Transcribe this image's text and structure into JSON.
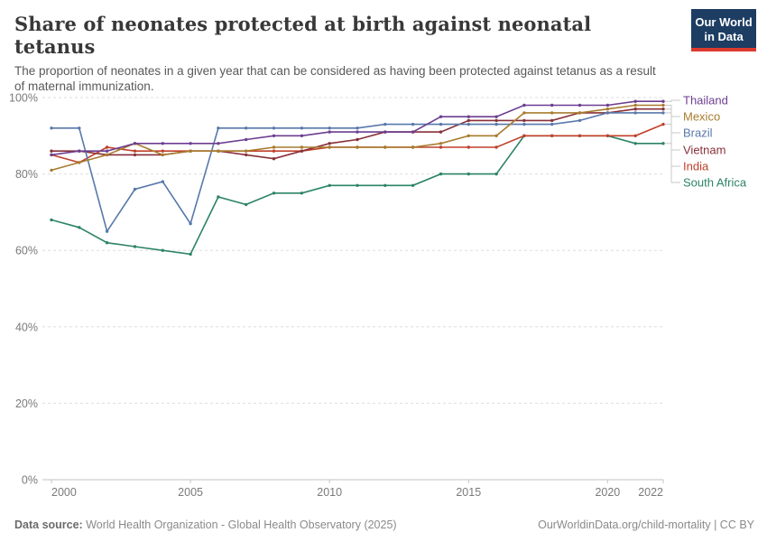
{
  "header": {
    "title": "Share of neonates protected at birth against neonatal tetanus",
    "subtitle": "The proportion of neonates in a given year that can be considered as having been protected against tetanus as a result of maternal immunization.",
    "logo": {
      "line1": "Our World",
      "line2": "in Data",
      "bg_color": "#1d3d63",
      "accent_color": "#dc3a2f"
    }
  },
  "chart_data": {
    "type": "line",
    "title": "Share of neonates protected at birth against neonatal tetanus",
    "xlabel": "",
    "ylabel": "",
    "ylim": [
      0,
      100
    ],
    "grid": "horizontal-dashed",
    "legend_position": "right",
    "x": [
      2000,
      2001,
      2002,
      2003,
      2004,
      2005,
      2006,
      2007,
      2008,
      2009,
      2010,
      2011,
      2012,
      2013,
      2014,
      2015,
      2016,
      2017,
      2018,
      2019,
      2020,
      2021,
      2022
    ],
    "x_ticks": [
      2000,
      2005,
      2010,
      2015,
      2020,
      2022
    ],
    "x_tick_labels": [
      "2000",
      "2005",
      "2010",
      "2015",
      "2020",
      "2022"
    ],
    "y_ticks": [
      0,
      20,
      40,
      60,
      80,
      100
    ],
    "y_tick_labels": [
      "0%",
      "20%",
      "40%",
      "60%",
      "80%",
      "100%"
    ],
    "series": [
      {
        "name": "Thailand",
        "color": "#6d3e91",
        "values": [
          85,
          86,
          86,
          88,
          88,
          88,
          88,
          89,
          90,
          90,
          91,
          91,
          91,
          91,
          95,
          95,
          95,
          98,
          98,
          98,
          98,
          99,
          99
        ]
      },
      {
        "name": "Mexico",
        "color": "#a87c2e",
        "values": [
          81,
          83,
          85,
          88,
          85,
          86,
          86,
          86,
          87,
          87,
          87,
          87,
          87,
          87,
          88,
          90,
          90,
          96,
          96,
          96,
          97,
          98,
          98
        ]
      },
      {
        "name": "Brazil",
        "color": "#5878ab",
        "values": [
          92,
          92,
          65,
          76,
          78,
          67,
          92,
          92,
          92,
          92,
          92,
          92,
          93,
          93,
          93,
          93,
          93,
          93,
          93,
          94,
          96,
          96,
          96
        ]
      },
      {
        "name": "Vietnam",
        "color": "#883039",
        "values": [
          86,
          86,
          85,
          85,
          85,
          86,
          86,
          85,
          84,
          86,
          88,
          89,
          91,
          91,
          91,
          94,
          94,
          94,
          94,
          96,
          96,
          97,
          97
        ]
      },
      {
        "name": "India",
        "color": "#c0402a",
        "values": [
          85,
          83,
          87,
          86,
          86,
          86,
          86,
          86,
          86,
          86,
          87,
          87,
          87,
          87,
          87,
          87,
          87,
          90,
          90,
          90,
          90,
          90,
          93
        ]
      },
      {
        "name": "South Africa",
        "color": "#2c8465",
        "values": [
          68,
          66,
          62,
          61,
          60,
          59,
          74,
          72,
          75,
          75,
          77,
          77,
          77,
          77,
          80,
          80,
          80,
          90,
          90,
          90,
          90,
          88,
          88
        ]
      }
    ]
  },
  "footer": {
    "source_label": "Data source:",
    "source_text": " World Health Organization - Global Health Observatory (2025)",
    "link_text": "OurWorldinData.org/child-mortality",
    "license_text": " | CC BY"
  }
}
